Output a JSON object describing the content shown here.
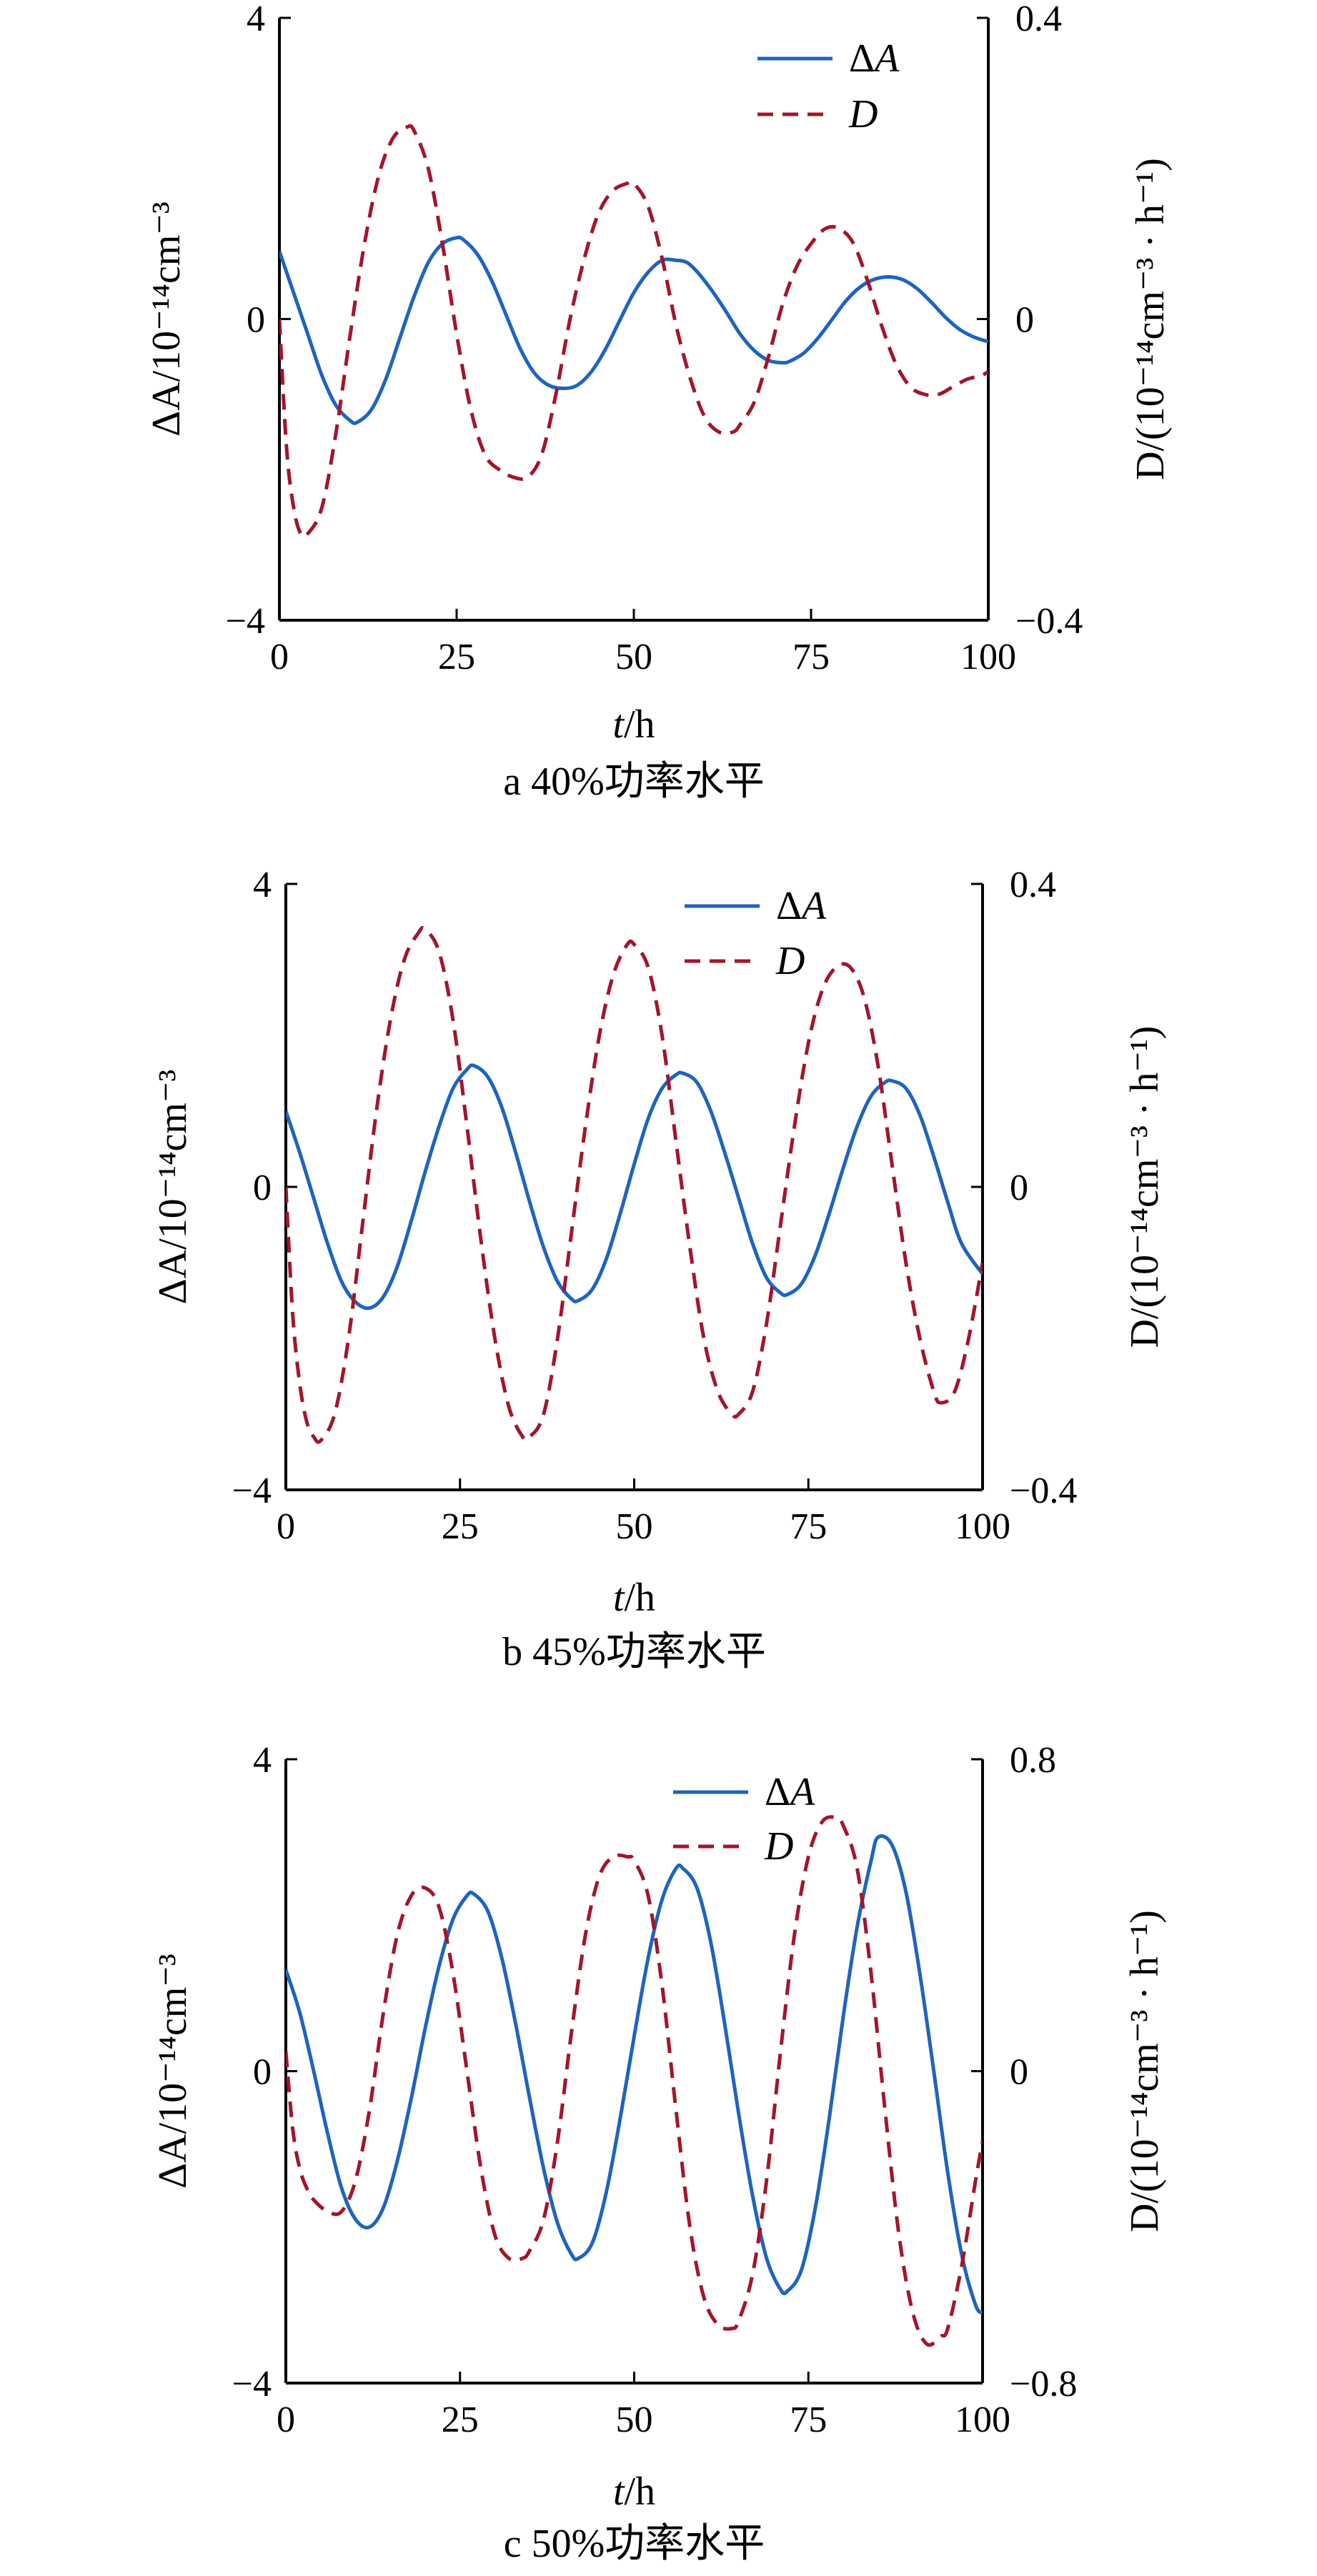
{
  "colors": {
    "delta_a": "#1f63bf",
    "d": "#a3152b",
    "axis": "#000000"
  },
  "chart_data": [
    {
      "type": "line",
      "caption": "a  40%功率水平",
      "xlabel_italic": "t",
      "xlabel_rest": "/h",
      "ylabel_left": "ΔA/10⁻¹⁴cm⁻³",
      "ylabel_right": "D/(10⁻¹⁴cm⁻³ · h⁻¹)",
      "xlim": [
        0,
        100
      ],
      "xticks": [
        0,
        25,
        50,
        75,
        100
      ],
      "ylim_left": [
        -4,
        4
      ],
      "yticks_left": [
        -4,
        0,
        4
      ],
      "ylim_right": [
        -0.4,
        0.4
      ],
      "yticks_right": [
        -0.4,
        0,
        0.4
      ],
      "xtick_labels": [
        "0",
        "25",
        "50",
        "75",
        "100"
      ],
      "ytick_labels_left": [
        "−4",
        "0",
        "4"
      ],
      "ytick_labels_right": [
        "−0.4",
        "0",
        "0.4"
      ],
      "legend": "top-right",
      "series": [
        {
          "name": "ΔA",
          "axis": "left",
          "style": "solid",
          "x": [
            0,
            2,
            4,
            6,
            8,
            10,
            11,
            13,
            15,
            17,
            19,
            21,
            23,
            25,
            26,
            28,
            30,
            32,
            34,
            36,
            38,
            40,
            42,
            44,
            46,
            48,
            50,
            52,
            54,
            56,
            57.5,
            59,
            61,
            63,
            65,
            67,
            69,
            71,
            72,
            74,
            76,
            78,
            80,
            82,
            84,
            86,
            88,
            90,
            92,
            94,
            96,
            98,
            100
          ],
          "y": [
            0.9,
            0.35,
            -0.2,
            -0.75,
            -1.15,
            -1.35,
            -1.37,
            -1.2,
            -0.8,
            -0.25,
            0.3,
            0.75,
            1.0,
            1.08,
            1.05,
            0.85,
            0.5,
            0.05,
            -0.4,
            -0.72,
            -0.88,
            -0.92,
            -0.88,
            -0.7,
            -0.4,
            -0.02,
            0.35,
            0.62,
            0.78,
            0.78,
            0.75,
            0.62,
            0.38,
            0.1,
            -0.2,
            -0.42,
            -0.55,
            -0.58,
            -0.56,
            -0.45,
            -0.25,
            0.0,
            0.25,
            0.43,
            0.53,
            0.56,
            0.52,
            0.4,
            0.22,
            0.02,
            -0.14,
            -0.24,
            -0.3
          ]
        },
        {
          "name": "D",
          "axis": "right",
          "style": "dashed",
          "x": [
            0,
            1,
            2,
            3,
            4,
            6,
            8,
            10,
            12,
            14,
            16,
            18,
            19,
            21,
            23,
            25,
            27,
            29,
            31,
            33,
            35,
            37,
            39,
            41,
            43,
            45,
            47,
            49,
            50,
            52,
            54,
            56,
            58,
            60,
            62,
            64,
            65,
            67,
            69,
            71,
            73,
            75,
            77,
            79,
            81,
            83,
            85,
            87,
            89,
            91,
            93,
            95,
            97,
            99,
            100
          ],
          "y": [
            0.0,
            -0.17,
            -0.25,
            -0.285,
            -0.285,
            -0.25,
            -0.15,
            -0.02,
            0.1,
            0.19,
            0.24,
            0.255,
            0.25,
            0.2,
            0.1,
            -0.02,
            -0.12,
            -0.18,
            -0.2,
            -0.21,
            -0.21,
            -0.18,
            -0.1,
            0.0,
            0.08,
            0.14,
            0.17,
            0.18,
            0.18,
            0.15,
            0.08,
            -0.01,
            -0.08,
            -0.13,
            -0.15,
            -0.15,
            -0.14,
            -0.11,
            -0.05,
            0.02,
            0.07,
            0.1,
            0.12,
            0.12,
            0.1,
            0.05,
            -0.01,
            -0.06,
            -0.09,
            -0.1,
            -0.1,
            -0.09,
            -0.08,
            -0.075,
            -0.07
          ]
        }
      ]
    },
    {
      "type": "line",
      "caption": "b  45%功率水平",
      "xlabel_italic": "t",
      "xlabel_rest": "/h",
      "ylabel_left": "ΔA/10⁻¹⁴cm⁻³",
      "ylabel_right": "D/(10⁻¹⁴cm⁻³ · h⁻¹)",
      "xlim": [
        0,
        100
      ],
      "xticks": [
        0,
        25,
        50,
        75,
        100
      ],
      "ylim_left": [
        -4,
        4
      ],
      "yticks_left": [
        -4,
        0,
        4
      ],
      "ylim_right": [
        -0.4,
        0.4
      ],
      "yticks_right": [
        -0.4,
        0,
        0.4
      ],
      "xtick_labels": [
        "0",
        "25",
        "50",
        "75",
        "100"
      ],
      "ytick_labels_left": [
        "−4",
        "0",
        "4"
      ],
      "ytick_labels_right": [
        "−0.4",
        "0",
        "0.4"
      ],
      "legend": "top-right",
      "series": [
        {
          "name": "ΔA",
          "axis": "left",
          "style": "solid",
          "x": [
            0,
            2,
            4,
            6,
            8,
            10,
            12,
            14,
            16,
            18,
            20,
            22,
            24,
            26,
            27,
            29,
            31,
            33,
            35,
            37,
            39,
            41,
            42,
            44,
            46,
            48,
            50,
            52,
            54,
            56,
            57,
            59,
            61,
            63,
            65,
            67,
            69,
            71,
            72,
            74,
            76,
            78,
            80,
            82,
            84,
            86,
            87,
            89,
            91,
            93,
            95,
            97,
            100
          ],
          "y": [
            1.0,
            0.45,
            -0.15,
            -0.75,
            -1.25,
            -1.52,
            -1.6,
            -1.45,
            -1.05,
            -0.45,
            0.2,
            0.8,
            1.3,
            1.55,
            1.6,
            1.45,
            1.05,
            0.45,
            -0.2,
            -0.8,
            -1.25,
            -1.48,
            -1.5,
            -1.35,
            -0.95,
            -0.35,
            0.3,
            0.9,
            1.3,
            1.48,
            1.5,
            1.38,
            1.0,
            0.45,
            -0.15,
            -0.75,
            -1.2,
            -1.4,
            -1.42,
            -1.28,
            -0.9,
            -0.35,
            0.25,
            0.8,
            1.2,
            1.38,
            1.4,
            1.3,
            0.95,
            0.4,
            -0.2,
            -0.75,
            -1.15
          ]
        },
        {
          "name": "D",
          "axis": "right",
          "style": "dashed",
          "x": [
            0,
            1,
            2,
            3,
            4,
            5,
            7,
            9,
            11,
            13,
            15,
            17,
            19,
            20,
            22,
            24,
            26,
            28,
            30,
            32,
            34,
            35,
            37,
            39,
            41,
            43,
            45,
            47,
            49,
            50,
            52,
            54,
            56,
            58,
            60,
            62,
            64,
            65,
            67,
            69,
            71,
            73,
            75,
            77,
            79,
            81,
            83,
            85,
            87,
            89,
            91,
            93,
            94,
            96,
            98,
            100
          ],
          "y": [
            0.0,
            -0.17,
            -0.26,
            -0.31,
            -0.33,
            -0.335,
            -0.3,
            -0.2,
            -0.05,
            0.1,
            0.22,
            0.3,
            0.335,
            0.34,
            0.31,
            0.22,
            0.08,
            -0.07,
            -0.2,
            -0.29,
            -0.33,
            -0.33,
            -0.3,
            -0.2,
            -0.06,
            0.08,
            0.2,
            0.28,
            0.32,
            0.32,
            0.29,
            0.2,
            0.06,
            -0.08,
            -0.2,
            -0.27,
            -0.3,
            -0.3,
            -0.27,
            -0.18,
            -0.05,
            0.08,
            0.19,
            0.26,
            0.29,
            0.29,
            0.25,
            0.16,
            0.03,
            -0.1,
            -0.2,
            -0.27,
            -0.285,
            -0.27,
            -0.2,
            -0.1
          ]
        }
      ]
    },
    {
      "type": "line",
      "caption": "c  50%功率水平",
      "xlabel_italic": "t",
      "xlabel_rest": "/h",
      "ylabel_left": "ΔA/10⁻¹⁴cm⁻³",
      "ylabel_right": "D/(10⁻¹⁴cm⁻³ · h⁻¹)",
      "xlim": [
        0,
        100
      ],
      "xticks": [
        0,
        25,
        50,
        75,
        100
      ],
      "ylim_left": [
        -4,
        4
      ],
      "yticks_left": [
        -4,
        0,
        4
      ],
      "ylim_right": [
        -0.8,
        0.8
      ],
      "yticks_right": [
        -0.8,
        0,
        0.8
      ],
      "xtick_labels": [
        "0",
        "25",
        "50",
        "75",
        "100"
      ],
      "ytick_labels_left": [
        "−4",
        "0",
        "4"
      ],
      "ytick_labels_right": [
        "−0.8",
        "0",
        "0.8"
      ],
      "legend": "top-right",
      "series": [
        {
          "name": "ΔA",
          "axis": "left",
          "style": "solid",
          "x": [
            0,
            2,
            4,
            6,
            8,
            10,
            12,
            14,
            16,
            18,
            20,
            22,
            24,
            26,
            27,
            29,
            31,
            33,
            35,
            37,
            39,
            41,
            42,
            44,
            46,
            48,
            50,
            52,
            54,
            56,
            57,
            59,
            61,
            63,
            65,
            67,
            69,
            71,
            72,
            74,
            76,
            78,
            80,
            82,
            84,
            85,
            87,
            89,
            91,
            93,
            95,
            97,
            99,
            100
          ],
          "y": [
            1.3,
            0.75,
            0.0,
            -0.8,
            -1.5,
            -1.9,
            -2.0,
            -1.75,
            -1.15,
            -0.35,
            0.55,
            1.35,
            1.95,
            2.25,
            2.27,
            2.05,
            1.45,
            0.6,
            -0.35,
            -1.25,
            -1.95,
            -2.35,
            -2.4,
            -2.2,
            -1.55,
            -0.6,
            0.45,
            1.45,
            2.2,
            2.6,
            2.6,
            2.35,
            1.65,
            0.6,
            -0.55,
            -1.6,
            -2.4,
            -2.8,
            -2.82,
            -2.55,
            -1.75,
            -0.6,
            0.7,
            1.85,
            2.7,
            3.0,
            2.9,
            2.3,
            1.25,
            0.0,
            -1.3,
            -2.35,
            -3.0,
            -3.1
          ]
        },
        {
          "name": "D",
          "axis": "right",
          "style": "dashed",
          "x": [
            0,
            1,
            2,
            3,
            4,
            6,
            8,
            10,
            12,
            14,
            16,
            18,
            20,
            22,
            24,
            26,
            28,
            30,
            32,
            34,
            35,
            37,
            39,
            41,
            43,
            45,
            47,
            49,
            50,
            52,
            54,
            56,
            58,
            60,
            62,
            64,
            65,
            67,
            69,
            71,
            73,
            75,
            77,
            79,
            80,
            82,
            84,
            86,
            88,
            90,
            92,
            94,
            95,
            97,
            99,
            100
          ],
          "y": [
            0.05,
            -0.15,
            -0.25,
            -0.3,
            -0.33,
            -0.36,
            -0.36,
            -0.28,
            -0.1,
            0.15,
            0.35,
            0.45,
            0.47,
            0.42,
            0.25,
            0.0,
            -0.25,
            -0.42,
            -0.48,
            -0.48,
            -0.46,
            -0.38,
            -0.18,
            0.1,
            0.35,
            0.5,
            0.55,
            0.55,
            0.54,
            0.45,
            0.22,
            -0.1,
            -0.4,
            -0.58,
            -0.65,
            -0.66,
            -0.64,
            -0.52,
            -0.28,
            0.05,
            0.35,
            0.55,
            0.64,
            0.65,
            0.63,
            0.52,
            0.25,
            -0.1,
            -0.42,
            -0.62,
            -0.7,
            -0.68,
            -0.66,
            -0.5,
            -0.28,
            -0.18
          ]
        }
      ]
    }
  ]
}
